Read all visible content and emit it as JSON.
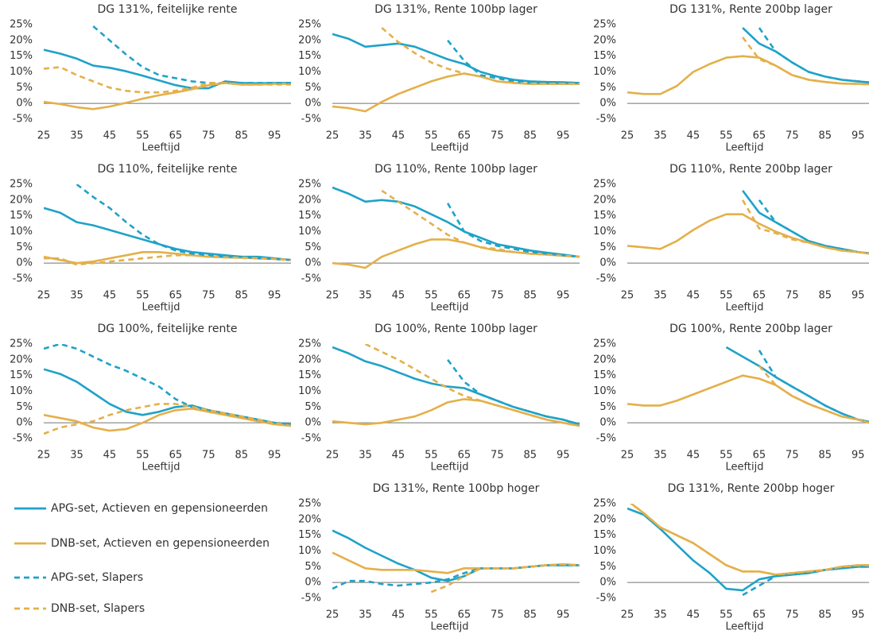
{
  "axes": {
    "xlabel": "Leeftijd",
    "x": [
      25,
      30,
      35,
      40,
      45,
      50,
      55,
      60,
      65,
      70,
      75,
      80,
      85,
      90,
      95,
      100
    ],
    "xlim": [
      25,
      100
    ],
    "xticks": [
      25,
      35,
      45,
      55,
      65,
      75,
      85,
      95
    ],
    "ylim": [
      -5,
      25
    ],
    "yticks": [
      {
        "value": -5,
        "label": "-5%"
      },
      {
        "value": 0,
        "label": "0%"
      },
      {
        "value": 5,
        "label": "5%"
      },
      {
        "value": 10,
        "label": "10%"
      },
      {
        "value": 15,
        "label": "15%"
      },
      {
        "value": 20,
        "label": "20%"
      },
      {
        "value": 25,
        "label": "25%"
      }
    ]
  },
  "legend": [
    {
      "name": "APG-set, Actieven en gepensioneerden",
      "color": "#1fa2c8",
      "dashed": false
    },
    {
      "name": "DNB-set, Actieven en gepensioneerden",
      "color": "#e4b04a",
      "dashed": false
    },
    {
      "name": "APG-set, Slapers",
      "color": "#1fa2c8",
      "dashed": true
    },
    {
      "name": "DNB-set, Slapers",
      "color": "#e4b04a",
      "dashed": true
    }
  ],
  "chart_data": [
    {
      "type": "line",
      "title": "DG 131%, feitelijke rente",
      "series": [
        {
          "values": [
            17,
            15.8,
            14.2,
            12,
            11.3,
            10.2,
            8.8,
            7.3,
            5.8,
            4.8,
            4.8,
            7,
            6.5,
            6.4,
            6.5,
            6.5
          ]
        },
        {
          "values": [
            0.5,
            -0.2,
            -1.2,
            -1.8,
            -1,
            0.2,
            1.5,
            2.6,
            3.5,
            4.5,
            5.8,
            6.5,
            6,
            6,
            6.2,
            6.2
          ]
        },
        {
          "values": [
            null,
            null,
            null,
            24.5,
            20,
            15.5,
            11.5,
            9,
            8,
            7,
            6.5,
            6.5,
            6.5,
            6.5,
            6.5,
            6.5
          ]
        },
        {
          "values": [
            11,
            11.5,
            9,
            7,
            5,
            4,
            3.5,
            3.5,
            4,
            5,
            6.5,
            6.5,
            6,
            6,
            6,
            6
          ]
        }
      ]
    },
    {
      "type": "line",
      "title": "DG 131%, Rente 100bp lager",
      "series": [
        {
          "values": [
            22,
            20.5,
            18,
            18.5,
            19,
            18,
            16,
            14,
            12.5,
            10,
            8.5,
            7.5,
            7,
            6.8,
            6.7,
            6.5
          ]
        },
        {
          "values": [
            -1,
            -1.5,
            -2.5,
            0.5,
            3,
            5,
            7,
            8.5,
            9.5,
            8.5,
            7,
            6.5,
            6.2,
            6.2,
            6.2,
            6.2
          ]
        },
        {
          "values": [
            null,
            null,
            null,
            null,
            null,
            null,
            null,
            20,
            13.5,
            9,
            8,
            7,
            6.5,
            6.5,
            6.5,
            6.5
          ]
        },
        {
          "values": [
            null,
            null,
            null,
            24,
            19.5,
            16,
            13,
            11,
            9.5,
            8.5,
            7,
            6.5,
            6.2,
            6.2,
            6.2,
            6.2
          ]
        }
      ]
    },
    {
      "type": "line",
      "title": "DG 131%, Rente 200bp lager",
      "series": [
        {
          "values": [
            null,
            null,
            null,
            null,
            null,
            null,
            null,
            24,
            19,
            16.5,
            13,
            10,
            8.5,
            7.5,
            7,
            6.5
          ]
        },
        {
          "values": [
            3.5,
            3,
            3,
            5.5,
            10,
            12.5,
            14.5,
            15,
            14.5,
            12,
            9,
            7.5,
            6.8,
            6.3,
            6.2,
            6
          ]
        },
        {
          "values": [
            null,
            null,
            null,
            null,
            null,
            null,
            null,
            null,
            24,
            16.5,
            13,
            10,
            8.5,
            7.5,
            7,
            6.5
          ]
        },
        {
          "values": [
            null,
            null,
            null,
            null,
            null,
            null,
            null,
            21,
            14,
            12,
            9,
            7.5,
            6.8,
            6.3,
            6.2,
            6
          ]
        }
      ]
    },
    {
      "type": "line",
      "title": "DG 110%, feitelijke rente",
      "series": [
        {
          "values": [
            17.5,
            16,
            13,
            12,
            10.5,
            9,
            7.5,
            6,
            4.5,
            3.5,
            3,
            2.5,
            2,
            2,
            1.5,
            1
          ]
        },
        {
          "values": [
            2,
            1,
            0,
            0.5,
            1.5,
            2.5,
            3.5,
            3.5,
            3,
            2.5,
            2,
            1.8,
            1.7,
            1.5,
            1.3,
            1
          ]
        },
        {
          "values": [
            null,
            null,
            25,
            21,
            17.5,
            13,
            9,
            6,
            4,
            3,
            2.5,
            2,
            2,
            1.5,
            1.3,
            1
          ]
        },
        {
          "values": [
            1.5,
            1.5,
            -0.5,
            0,
            0.5,
            1,
            1.5,
            2,
            2.5,
            2.5,
            2,
            1.8,
            1.7,
            1.5,
            1.3,
            1
          ]
        }
      ]
    },
    {
      "type": "line",
      "title": "DG 110%, Rente 100bp lager",
      "series": [
        {
          "values": [
            24,
            22,
            19.5,
            20,
            19.5,
            18,
            15.5,
            13,
            10,
            8,
            6,
            5,
            4,
            3.3,
            2.7,
            2
          ]
        },
        {
          "values": [
            0,
            -0.5,
            -1.5,
            2,
            4,
            6,
            7.5,
            7.5,
            6.5,
            5,
            4,
            3.5,
            3,
            2.7,
            2.3,
            2
          ]
        },
        {
          "values": [
            null,
            null,
            null,
            null,
            null,
            null,
            null,
            19,
            10,
            7,
            5.5,
            4.5,
            3.5,
            3,
            2.5,
            2
          ]
        },
        {
          "values": [
            null,
            null,
            null,
            23,
            19.5,
            16,
            12.5,
            9,
            6.5,
            5,
            4.5,
            3.5,
            3,
            2.7,
            2.3,
            2
          ]
        }
      ]
    },
    {
      "type": "line",
      "title": "DG 110%, Rente 200bp lager",
      "series": [
        {
          "values": [
            null,
            null,
            null,
            null,
            null,
            null,
            null,
            23,
            16,
            13,
            10,
            7,
            5.5,
            4.5,
            3.5,
            3
          ]
        },
        {
          "values": [
            5.5,
            5,
            4.5,
            7,
            10.5,
            13.5,
            15.5,
            15.5,
            12.5,
            10,
            8,
            6.5,
            5,
            4,
            3.5,
            2.8
          ]
        },
        {
          "values": [
            null,
            null,
            null,
            null,
            null,
            null,
            null,
            null,
            20,
            13,
            10,
            7,
            5.5,
            4.5,
            3.5,
            3
          ]
        },
        {
          "values": [
            null,
            null,
            null,
            null,
            null,
            null,
            null,
            20,
            11,
            9.5,
            7.5,
            6.5,
            5,
            4,
            3.5,
            2.8
          ]
        }
      ]
    },
    {
      "type": "line",
      "title": "DG 100%, feitelijke rente",
      "series": [
        {
          "values": [
            17,
            15.5,
            13,
            9.5,
            6,
            3.5,
            2.5,
            3.5,
            5,
            5.5,
            4,
            3,
            2,
            1,
            0,
            -0.5
          ]
        },
        {
          "values": [
            2.5,
            1.5,
            0.5,
            -1.5,
            -2.5,
            -2,
            0,
            2.5,
            4,
            4.5,
            3.5,
            2.5,
            1.5,
            0.5,
            -0.5,
            -1
          ]
        },
        {
          "values": [
            23.5,
            25,
            23.5,
            21,
            18.5,
            16.5,
            14,
            11.5,
            7.5,
            5,
            4,
            3,
            2,
            1,
            0,
            -0.5
          ]
        },
        {
          "values": [
            -3.5,
            -1.5,
            -0.5,
            0.5,
            2.5,
            4,
            5,
            6,
            6,
            5,
            4,
            3,
            2,
            1,
            0,
            -1
          ]
        }
      ]
    },
    {
      "type": "line",
      "title": "DG 100%, Rente 100bp lager",
      "series": [
        {
          "values": [
            24,
            22,
            19.5,
            18,
            16,
            14,
            12.5,
            11.5,
            11,
            9,
            7,
            5,
            3.5,
            2,
            1,
            -0.5
          ]
        },
        {
          "values": [
            0.5,
            0,
            -0.5,
            0,
            1,
            2,
            4,
            6.5,
            7.5,
            7,
            5.5,
            4,
            2.5,
            1,
            0,
            -1
          ]
        },
        {
          "values": [
            null,
            null,
            null,
            null,
            null,
            null,
            null,
            20,
            13,
            9,
            7,
            5,
            3.5,
            2,
            1,
            -0.5
          ]
        },
        {
          "values": [
            null,
            null,
            25,
            22.5,
            20,
            17,
            14,
            11,
            8.5,
            7,
            5.5,
            4,
            2.5,
            1,
            0,
            -1
          ]
        }
      ]
    },
    {
      "type": "line",
      "title": "DG 100%, Rente 200bp lager",
      "series": [
        {
          "values": [
            null,
            null,
            null,
            null,
            null,
            null,
            24,
            21,
            18,
            14.5,
            11.5,
            8.5,
            5.5,
            3,
            1,
            0
          ]
        },
        {
          "values": [
            6,
            5.5,
            5.5,
            7,
            9,
            11,
            13,
            15,
            14,
            12,
            8.5,
            6,
            4,
            2,
            1,
            -0.5
          ]
        },
        {
          "values": [
            null,
            null,
            null,
            null,
            null,
            null,
            null,
            null,
            23,
            14.5,
            11.5,
            8.5,
            5.5,
            3,
            1,
            0
          ]
        },
        {
          "values": [
            null,
            null,
            null,
            null,
            null,
            null,
            null,
            null,
            18,
            12,
            8.5,
            6,
            4,
            2,
            1,
            -0.5
          ]
        }
      ]
    },
    {
      "type": "line",
      "title": "DG 131%, Rente 100bp hoger",
      "series": [
        {
          "values": [
            16.5,
            14,
            11,
            8.5,
            6,
            4,
            1.5,
            0.5,
            2,
            4.5,
            4.5,
            4.5,
            5,
            5.5,
            5.5,
            5.5
          ]
        },
        {
          "values": [
            9.5,
            7,
            4.5,
            4,
            4,
            4,
            3.5,
            3,
            4.5,
            4.5,
            4.5,
            4.5,
            5,
            5.5,
            5.8,
            5.5
          ]
        },
        {
          "values": [
            -2,
            0.5,
            0.5,
            -0.5,
            -1,
            -0.5,
            0,
            1,
            3,
            4.5,
            4.5,
            4.5,
            5,
            5.5,
            5.5,
            5.5
          ]
        },
        {
          "values": [
            null,
            null,
            null,
            null,
            null,
            null,
            -3,
            -1,
            2,
            4.5,
            4.5,
            4.5,
            5,
            5.5,
            5.8,
            5.5
          ]
        }
      ]
    },
    {
      "type": "line",
      "title": "DG 131%, Rente 200bp hoger",
      "series": [
        {
          "values": [
            23.5,
            21.5,
            17,
            12,
            7,
            3,
            -2,
            -2.5,
            1,
            2,
            2.5,
            3,
            4,
            4.5,
            5,
            5
          ]
        },
        {
          "values": [
            26,
            22,
            17.5,
            15,
            12.5,
            9,
            5.5,
            3.5,
            3.5,
            2.5,
            3,
            3.5,
            4,
            5,
            5.5,
            5.5
          ]
        },
        {
          "values": [
            null,
            null,
            null,
            null,
            null,
            null,
            null,
            -4,
            -1,
            2,
            2.5,
            3,
            4,
            4.5,
            5,
            5
          ]
        },
        {
          "values": [
            26,
            22,
            17.5,
            15,
            12.5,
            9,
            5.5,
            3.5,
            3.5,
            2.5,
            3,
            3.5,
            4,
            5,
            5.5,
            5.5
          ]
        }
      ]
    }
  ]
}
